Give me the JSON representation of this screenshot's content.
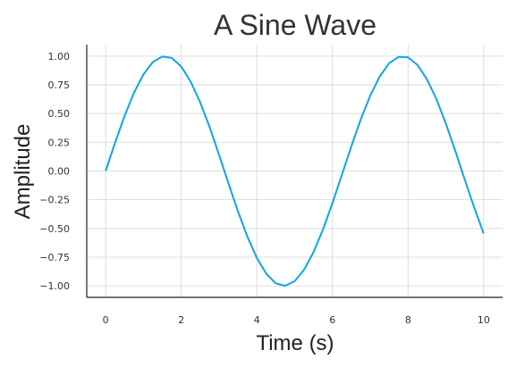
{
  "chart_data": {
    "type": "line",
    "title": "A Sine Wave",
    "xlabel": "Time (s)",
    "ylabel": "Amplitude",
    "xlim": [
      -0.5,
      10.5
    ],
    "ylim": [
      -1.1,
      1.1
    ],
    "grid": true,
    "x_ticks": [
      0,
      2,
      4,
      6,
      8,
      10
    ],
    "x_tick_labels": [
      "0",
      "2",
      "4",
      "6",
      "8",
      "10"
    ],
    "y_ticks": [
      1.0,
      0.75,
      0.5,
      0.25,
      0.0,
      -0.25,
      -0.5,
      -0.75,
      -1.0
    ],
    "y_tick_labels": [
      "1.00",
      "0.75",
      "0.50",
      "0.25",
      "0.00",
      "−0.25",
      "−0.50",
      "−0.75",
      "−1.00"
    ],
    "series": [
      {
        "color": "#0ca6e8",
        "x": [
          0,
          0.25,
          0.5,
          0.75,
          1.0,
          1.25,
          1.5,
          1.75,
          2.0,
          2.25,
          2.5,
          2.75,
          3.0,
          3.25,
          3.5,
          3.75,
          4.0,
          4.25,
          4.5,
          4.75,
          5.0,
          5.25,
          5.5,
          5.75,
          6.0,
          6.25,
          6.5,
          6.75,
          7.0,
          7.25,
          7.5,
          7.75,
          8.0,
          8.25,
          8.5,
          8.75,
          9.0,
          9.25,
          9.5,
          9.75,
          10.0
        ],
        "y": [
          0.0,
          0.247,
          0.479,
          0.682,
          0.841,
          0.949,
          0.997,
          0.984,
          0.909,
          0.778,
          0.598,
          0.382,
          0.141,
          -0.108,
          -0.351,
          -0.572,
          -0.757,
          -0.895,
          -0.978,
          -0.999,
          -0.959,
          -0.859,
          -0.706,
          -0.508,
          -0.279,
          -0.033,
          0.215,
          0.451,
          0.657,
          0.823,
          0.938,
          0.994,
          0.989,
          0.923,
          0.798,
          0.625,
          0.412,
          0.174,
          -0.075,
          -0.319,
          -0.544
        ]
      }
    ]
  }
}
